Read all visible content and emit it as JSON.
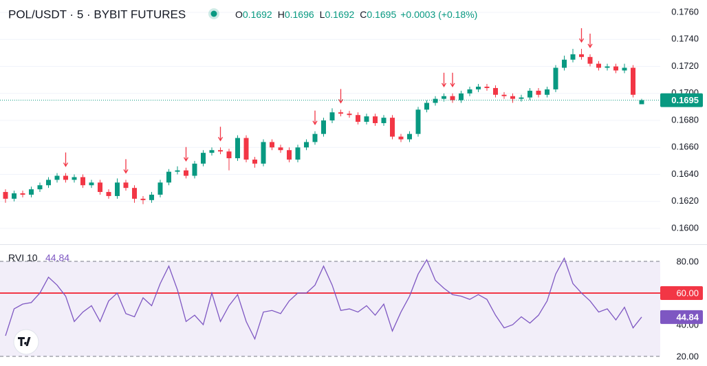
{
  "chart_data": [
    {
      "type": "candlestick",
      "title": "POL/USDT · 5 · BYBIT FUTURES",
      "legend": [
        {
          "label": "O",
          "value": "0.1692"
        },
        {
          "label": "H",
          "value": "0.1696"
        },
        {
          "label": "L",
          "value": "0.1692"
        },
        {
          "label": "C",
          "value": "0.1695"
        }
      ],
      "change": "+0.0003 (+0.18%)",
      "open": [
        0.1627,
        0.1622,
        0.1626,
        0.1625,
        0.1629,
        0.1632,
        0.1636,
        0.1639,
        0.1636,
        0.1638,
        0.1632,
        0.1634,
        0.1627,
        0.1624,
        0.1634,
        0.163,
        0.1622,
        0.1621,
        0.1625,
        0.1634,
        0.1642,
        0.1643,
        0.1639,
        0.1648,
        0.1656,
        0.1658,
        0.1657,
        0.1652,
        0.1667,
        0.1651,
        0.1648,
        0.1664,
        0.166,
        0.1658,
        0.1651,
        0.166,
        0.1664,
        0.167,
        0.168,
        0.1686,
        0.1685,
        0.1684,
        0.1679,
        0.1683,
        0.1678,
        0.1682,
        0.1668,
        0.1666,
        0.167,
        0.1688,
        0.1693,
        0.1696,
        0.1698,
        0.1695,
        0.17,
        0.1703,
        0.1705,
        0.1704,
        0.1699,
        0.1698,
        0.1696,
        0.1697,
        0.1702,
        0.1699,
        0.1703,
        0.1719,
        0.1725,
        0.1729,
        0.1727,
        0.1722,
        0.1719,
        0.172,
        0.1717,
        0.1719,
        0.1692
      ],
      "high": [
        0.1629,
        0.1628,
        0.1628,
        0.1631,
        0.1634,
        0.1638,
        0.1641,
        0.1641,
        0.164,
        0.164,
        0.1636,
        0.1636,
        0.1629,
        0.1637,
        0.1636,
        0.1632,
        0.1624,
        0.1627,
        0.1636,
        0.1644,
        0.1646,
        0.1645,
        0.165,
        0.1658,
        0.166,
        0.166,
        0.1659,
        0.1669,
        0.1669,
        0.1653,
        0.1666,
        0.1666,
        0.1662,
        0.166,
        0.1662,
        0.1666,
        0.1672,
        0.1682,
        0.1689,
        0.1688,
        0.1687,
        0.1686,
        0.1685,
        0.1685,
        0.1684,
        0.1684,
        0.167,
        0.1672,
        0.169,
        0.1695,
        0.1698,
        0.17,
        0.17,
        0.1702,
        0.1705,
        0.1707,
        0.1707,
        0.1706,
        0.1701,
        0.17,
        0.1699,
        0.1704,
        0.1704,
        0.1705,
        0.1721,
        0.1728,
        0.1733,
        0.1733,
        0.1729,
        0.1724,
        0.1722,
        0.1722,
        0.1722,
        0.1721,
        0.1696
      ],
      "low": [
        0.1619,
        0.162,
        0.1623,
        0.1623,
        0.1627,
        0.163,
        0.1634,
        0.1634,
        0.1634,
        0.163,
        0.163,
        0.1625,
        0.1622,
        0.1622,
        0.1628,
        0.1619,
        0.1618,
        0.1619,
        0.1623,
        0.1632,
        0.164,
        0.1637,
        0.1637,
        0.1646,
        0.1654,
        0.1655,
        0.1643,
        0.165,
        0.1649,
        0.1645,
        0.1646,
        0.1658,
        0.1656,
        0.1649,
        0.1649,
        0.1658,
        0.1662,
        0.1668,
        0.1678,
        0.1683,
        0.1682,
        0.1677,
        0.1677,
        0.1676,
        0.1676,
        0.1666,
        0.1664,
        0.1664,
        0.1668,
        0.1686,
        0.1691,
        0.1694,
        0.1693,
        0.1693,
        0.1698,
        0.1701,
        0.1702,
        0.1697,
        0.1696,
        0.1693,
        0.1694,
        0.1695,
        0.1697,
        0.1697,
        0.1701,
        0.1717,
        0.1723,
        0.1725,
        0.172,
        0.1717,
        0.1717,
        0.1715,
        0.1715,
        0.1697,
        0.1692
      ],
      "close": [
        0.1622,
        0.1626,
        0.1625,
        0.1629,
        0.1632,
        0.1636,
        0.1639,
        0.1636,
        0.1638,
        0.1632,
        0.1634,
        0.1627,
        0.1624,
        0.1634,
        0.163,
        0.1622,
        0.1621,
        0.1625,
        0.1634,
        0.1642,
        0.1643,
        0.1639,
        0.1648,
        0.1656,
        0.1658,
        0.1657,
        0.1652,
        0.1667,
        0.1651,
        0.1648,
        0.1664,
        0.166,
        0.1658,
        0.1651,
        0.166,
        0.1664,
        0.167,
        0.168,
        0.1686,
        0.1685,
        0.1684,
        0.1679,
        0.1683,
        0.1678,
        0.1682,
        0.1668,
        0.1666,
        0.167,
        0.1688,
        0.1693,
        0.1696,
        0.1698,
        0.1695,
        0.17,
        0.1703,
        0.1705,
        0.1704,
        0.1699,
        0.1698,
        0.1696,
        0.1697,
        0.1702,
        0.1699,
        0.1703,
        0.1719,
        0.1725,
        0.1729,
        0.1727,
        0.1722,
        0.1719,
        0.172,
        0.1717,
        0.1719,
        0.1699,
        0.1695
      ],
      "up_color": "#089981",
      "down_color": "#f23645",
      "ylim": [
        0.15883,
        0.17692
      ],
      "yticks": [
        {
          "value": 0.16,
          "label": "0.1600"
        },
        {
          "value": 0.162,
          "label": "0.1620"
        },
        {
          "value": 0.164,
          "label": "0.1640"
        },
        {
          "value": 0.166,
          "label": "0.1660"
        },
        {
          "value": 0.168,
          "label": "0.1680"
        },
        {
          "value": 0.17,
          "label": "0.1700"
        },
        {
          "value": 0.172,
          "label": "0.1720"
        },
        {
          "value": 0.174,
          "label": "0.1740"
        },
        {
          "value": 0.176,
          "label": "0.1760"
        }
      ],
      "grid": true,
      "last_price": {
        "value": 0.1695,
        "label": "0.1695"
      },
      "signals": [
        7,
        14,
        21,
        25,
        36,
        39,
        51,
        52,
        67,
        68
      ],
      "signal_color": "#f23645"
    },
    {
      "type": "line",
      "name": "RVI 10",
      "value_label": "44.84",
      "color": "#7e57c2",
      "values": [
        33,
        50,
        53,
        54,
        60,
        70,
        65,
        58,
        42,
        48,
        52,
        42,
        55,
        60,
        47,
        45,
        57,
        52,
        66,
        77,
        62,
        42,
        46,
        40,
        60,
        42,
        52,
        59,
        42,
        31,
        48,
        49,
        47,
        55,
        60,
        60,
        65,
        77,
        65,
        49,
        50,
        48,
        52,
        46,
        53,
        36,
        48,
        58,
        72,
        81,
        68,
        63,
        59,
        58,
        56,
        59,
        56,
        46,
        38,
        40,
        45,
        41,
        46,
        55,
        72,
        82,
        66,
        60,
        55,
        48,
        50,
        43,
        51,
        38,
        44.84
      ],
      "ylim": [
        13.9,
        90.4
      ],
      "yticks": [
        {
          "value": 20,
          "label": "20.00"
        },
        {
          "value": 40,
          "label": "40.00"
        },
        {
          "value": 60,
          "label": "60.00"
        },
        {
          "value": 80,
          "label": "80.00"
        }
      ],
      "band": [
        20,
        80
      ],
      "level": {
        "value": 60,
        "color": "#f23645"
      },
      "last_value": {
        "value": 44.84,
        "label": "44.84"
      }
    }
  ]
}
